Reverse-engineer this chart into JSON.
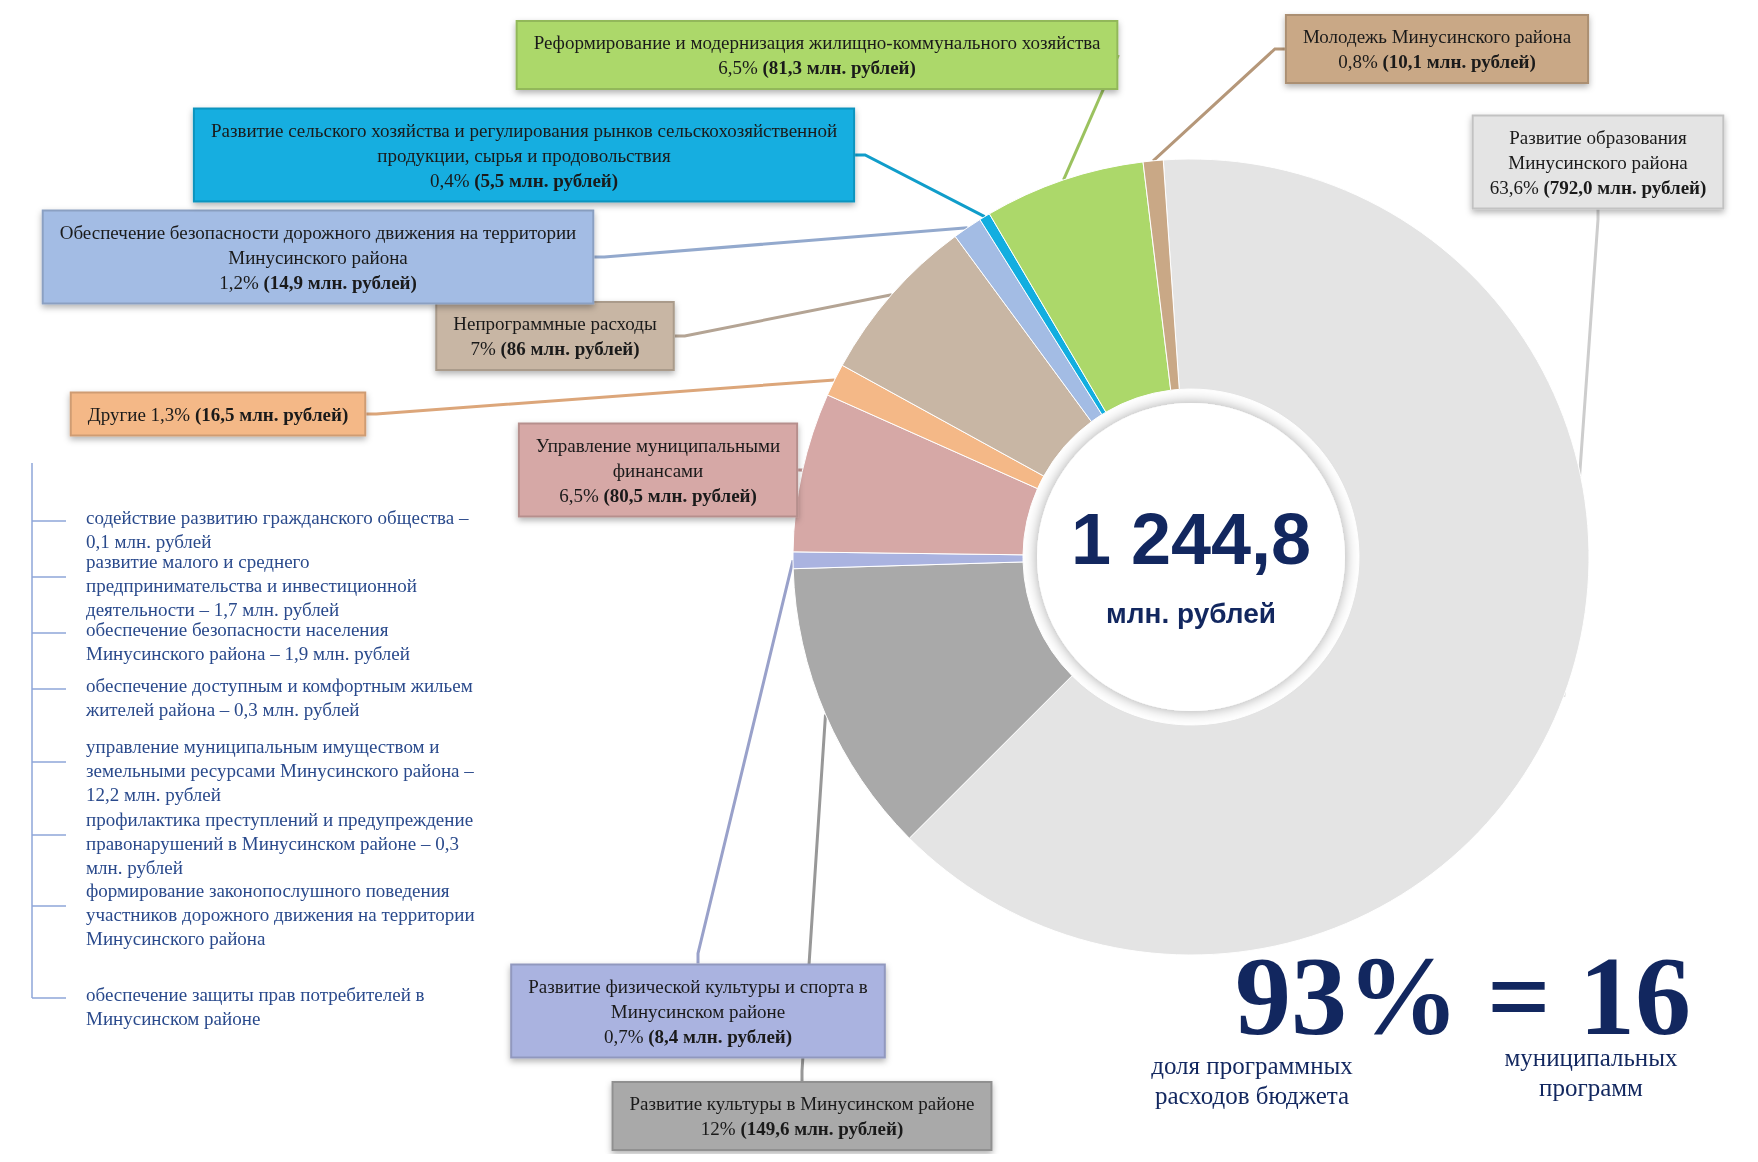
{
  "chart_data": {
    "type": "donut",
    "categories": [
      "Развитие образования Минусинского района",
      "Развитие культуры в Минусинском районе",
      "Развитие физической культуры и спорта в Минусинском районе",
      "Управление муниципальными финансами",
      "Другие",
      "Непрограммные расходы",
      "Обеспечение безопасности дорожного движения на территории Минусинского района",
      "Развитие сельского хозяйства и регулирования рынков сельскохозяйственной продукции, сырья и продовольствия",
      "Реформирование и модернизация жилищно-коммунального хозяйства",
      "Молодежь Минусинского района"
    ],
    "values": [
      792.0,
      149.6,
      8.4,
      80.5,
      16.5,
      86,
      14.9,
      5.5,
      81.3,
      10.1
    ],
    "value_labels": [
      "63,6% (792,0 млн. рублей)",
      "12% (149,6 млн. рублей)",
      "0,7% (8,4 млн. рублей)",
      "6,5% (80,5 млн. рублей)",
      "1,3% (16,5 млн. рублей)",
      "7% (86 млн. рублей)",
      "1,2% (14,9 млн. рублей)",
      "0,4% (5,5 млн. рублей)",
      "6,5% (81,3 млн. рублей)",
      "0,8% (10,1 млн. рублей)"
    ],
    "colors": [
      "#e4e4e4",
      "#a9a9a9",
      "#aab3e0",
      "#d6a8a6",
      "#f4b887",
      "#c8b6a4",
      "#a3bce4",
      "#12aee0",
      "#acd86a",
      "#c9a886"
    ],
    "legend": false,
    "annotations": [
      "1 244,8",
      "млн. рублей",
      "93% = 16",
      "доля программных расходов бюджета",
      "муниципальных программ",
      "содействие развитию гражданского общества – 0,1 млн. рублей",
      "развитие малого и среднего предпринимательства и инвестиционной деятельности – 1,7 млн. рублей",
      "обеспечение безопасности населения Минусинского района – 1,9 млн. рублей",
      "обеспечение доступным и комфортным жильем жителей района – 0,3 млн. рублей",
      "управление муниципальным имуществом и земельными ресурсами Минусинского района – 12,2 млн. рублей",
      "профилактика преступлений и предупреждение правонарушений в Минусинском районе – 0,3 млн. рублей",
      "формирование законопослушного поведения участников дорожного движения на территории Минусинского района",
      "обеспечение защиты прав потребителей в Минусинском районе"
    ]
  }
}
